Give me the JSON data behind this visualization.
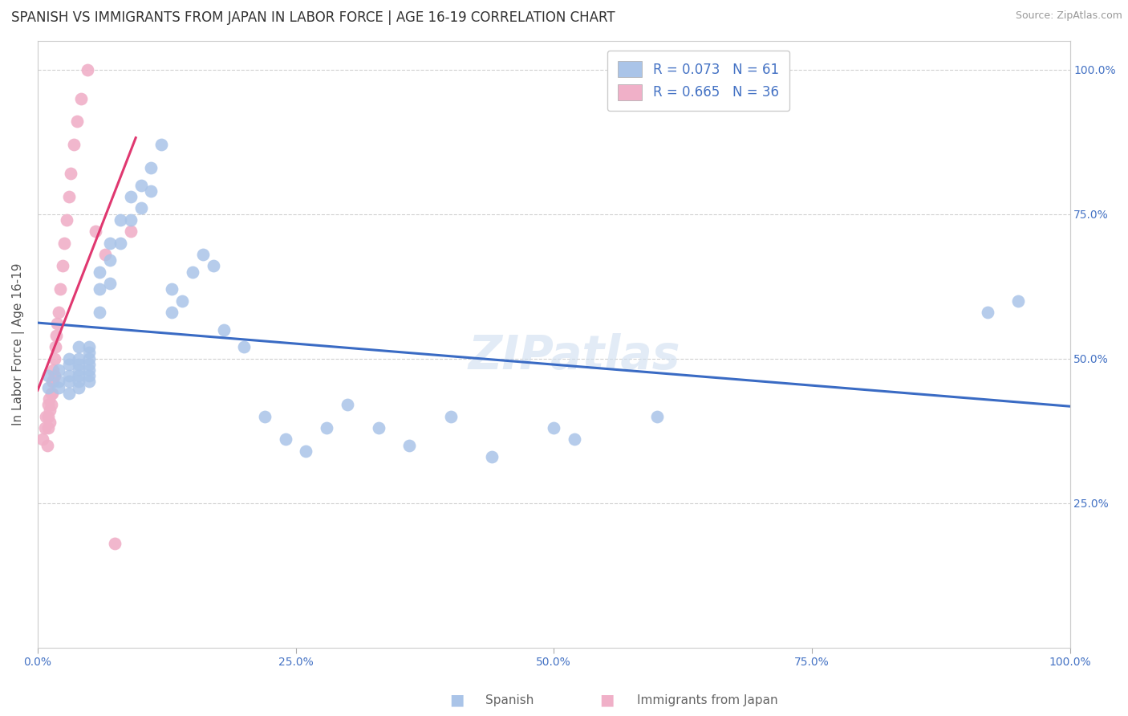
{
  "title": "SPANISH VS IMMIGRANTS FROM JAPAN IN LABOR FORCE | AGE 16-19 CORRELATION CHART",
  "source": "Source: ZipAtlas.com",
  "ylabel_label": "In Labor Force | Age 16-19",
  "watermark": "ZIPatlas",
  "xlim": [
    0.0,
    1.0
  ],
  "ylim": [
    0.0,
    1.05
  ],
  "background_color": "#ffffff",
  "grid_color": "#d0d0d0",
  "spanish_R": 0.073,
  "spanish_N": 61,
  "japan_R": 0.665,
  "japan_N": 36,
  "spanish_color": "#aac4e8",
  "japan_color": "#f0b0c8",
  "spanish_line_color": "#3a6bc4",
  "japan_line_color": "#e03870",
  "legend_text_color": "#4472c4",
  "tick_color": "#4472c4",
  "spanish_x": [
    0.01,
    0.01,
    0.02,
    0.02,
    0.02,
    0.03,
    0.03,
    0.03,
    0.03,
    0.03,
    0.04,
    0.04,
    0.04,
    0.04,
    0.04,
    0.04,
    0.04,
    0.05,
    0.05,
    0.05,
    0.05,
    0.05,
    0.05,
    0.05,
    0.06,
    0.06,
    0.06,
    0.07,
    0.07,
    0.07,
    0.08,
    0.08,
    0.09,
    0.09,
    0.1,
    0.1,
    0.11,
    0.11,
    0.12,
    0.13,
    0.13,
    0.14,
    0.15,
    0.16,
    0.17,
    0.18,
    0.2,
    0.22,
    0.24,
    0.26,
    0.28,
    0.3,
    0.33,
    0.36,
    0.4,
    0.44,
    0.5,
    0.52,
    0.6,
    0.92,
    0.95
  ],
  "spanish_y": [
    0.47,
    0.45,
    0.48,
    0.46,
    0.45,
    0.5,
    0.49,
    0.47,
    0.46,
    0.44,
    0.52,
    0.5,
    0.49,
    0.48,
    0.47,
    0.46,
    0.45,
    0.52,
    0.51,
    0.5,
    0.49,
    0.48,
    0.47,
    0.46,
    0.65,
    0.62,
    0.58,
    0.7,
    0.67,
    0.63,
    0.74,
    0.7,
    0.78,
    0.74,
    0.8,
    0.76,
    0.83,
    0.79,
    0.87,
    0.62,
    0.58,
    0.6,
    0.65,
    0.68,
    0.66,
    0.55,
    0.52,
    0.4,
    0.36,
    0.34,
    0.38,
    0.42,
    0.38,
    0.35,
    0.4,
    0.33,
    0.38,
    0.36,
    0.4,
    0.58,
    0.6
  ],
  "japan_x": [
    0.005,
    0.007,
    0.008,
    0.009,
    0.01,
    0.01,
    0.01,
    0.011,
    0.012,
    0.012,
    0.013,
    0.013,
    0.014,
    0.014,
    0.015,
    0.015,
    0.016,
    0.016,
    0.017,
    0.018,
    0.019,
    0.02,
    0.022,
    0.024,
    0.026,
    0.028,
    0.03,
    0.032,
    0.035,
    0.038,
    0.042,
    0.048,
    0.056,
    0.065,
    0.075,
    0.09
  ],
  "japan_y": [
    0.36,
    0.38,
    0.4,
    0.35,
    0.42,
    0.4,
    0.38,
    0.43,
    0.41,
    0.39,
    0.44,
    0.42,
    0.46,
    0.44,
    0.48,
    0.46,
    0.5,
    0.47,
    0.52,
    0.54,
    0.56,
    0.58,
    0.62,
    0.66,
    0.7,
    0.74,
    0.78,
    0.82,
    0.87,
    0.91,
    0.95,
    1.0,
    0.72,
    0.68,
    0.18,
    0.72
  ],
  "title_fontsize": 12,
  "axis_label_fontsize": 11,
  "tick_fontsize": 10,
  "legend_fontsize": 12,
  "watermark_fontsize": 42
}
